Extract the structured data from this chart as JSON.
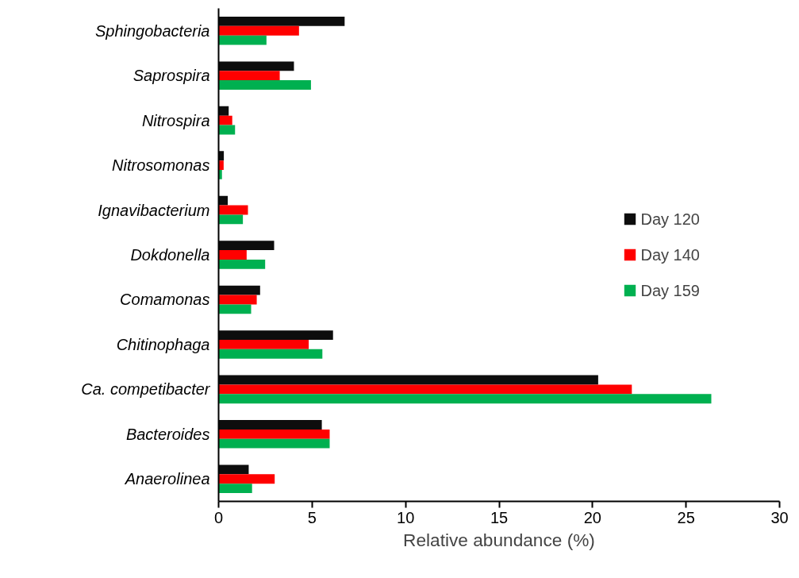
{
  "chart_data": {
    "type": "bar",
    "orientation": "horizontal",
    "xlabel": "Relative abundance (%)",
    "categories": [
      "Sphingobacteria",
      "Saprospira",
      "Nitrospira",
      "Nitrosomonas",
      "Ignavibacterium",
      "Dokdonella",
      "Comamonas",
      "Chitinophaga",
      "Ca. competibacter",
      "Bacteroides",
      "Anaerolinea"
    ],
    "series": [
      {
        "name": "Day 120",
        "color": "#0d0d0d",
        "values": [
          6.74,
          4.03,
          0.54,
          0.28,
          0.49,
          2.97,
          2.22,
          6.12,
          20.3,
          5.52,
          1.61
        ]
      },
      {
        "name": "Day 140",
        "color": "#ff0000",
        "values": [
          4.3,
          3.27,
          0.73,
          0.27,
          1.57,
          1.5,
          2.04,
          4.82,
          22.1,
          5.94,
          3.0
        ]
      },
      {
        "name": "Day 159",
        "color": "#00b050",
        "values": [
          2.56,
          4.94,
          0.88,
          0.18,
          1.3,
          2.49,
          1.74,
          5.55,
          26.35,
          5.94,
          1.79
        ]
      }
    ],
    "xlim": [
      0,
      30
    ],
    "xticks": [
      0,
      5,
      10,
      15,
      20,
      25,
      30
    ],
    "grid": false,
    "legend": "right"
  }
}
